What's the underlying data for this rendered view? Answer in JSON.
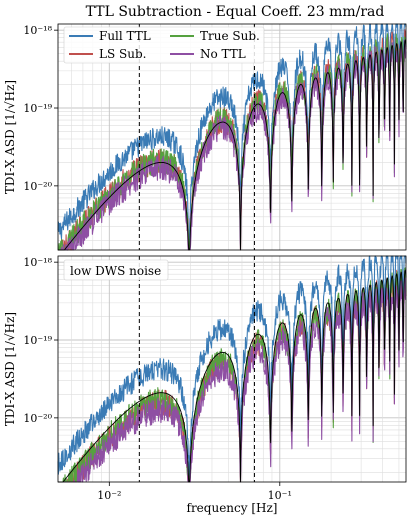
{
  "chart_data": [
    {
      "type": "line",
      "title": "TTL Subtraction - Equal Coeff. 23 mm/rad",
      "ylabel": "TDI-X ASD [1/√Hz]",
      "xlabel": "",
      "x_scale": "log",
      "y_scale": "log",
      "xlim": [
        0.005,
        0.55
      ],
      "ylim": [
        1.5e-21,
        1.2e-18
      ],
      "grid": true,
      "legend_location": "top-left",
      "y_ticks": [
        "10⁻²⁰",
        "10⁻¹⁹",
        "10⁻¹⁸"
      ],
      "vlines": [
        0.015,
        0.071
      ],
      "series": [
        {
          "name": "Full TTL",
          "color": "#3a7bb5",
          "peak_scale": 2.0
        },
        {
          "name": "LS Sub.",
          "color": "#c0504d",
          "peak_scale": 1.0
        },
        {
          "name": "True Sub.",
          "color": "#55a13f",
          "peak_scale": 1.0
        },
        {
          "name": "No TTL",
          "color": "#8e4fa3",
          "peak_scale": 0.8
        },
        {
          "name": "",
          "color": "#000000",
          "peak_scale": 0.95
        }
      ]
    },
    {
      "type": "line",
      "title": "",
      "annotation": "low DWS noise",
      "ylabel": "TDI-X ASD [1/√Hz]",
      "xlabel": "frequency [Hz]",
      "x_scale": "log",
      "y_scale": "log",
      "xlim": [
        0.005,
        0.55
      ],
      "ylim": [
        1.5e-21,
        1.2e-18
      ],
      "grid": true,
      "x_ticks": [
        "10⁻²",
        "10⁻¹"
      ],
      "y_ticks": [
        "10⁻²⁰",
        "10⁻¹⁹",
        "10⁻¹⁸"
      ],
      "vlines": [
        0.015,
        0.071
      ],
      "series": [
        {
          "name": "Full TTL",
          "color": "#3a7bb5",
          "peak_scale": 2.0
        },
        {
          "name": "LS Sub.",
          "color": "#c0504d",
          "peak_scale": 0.75
        },
        {
          "name": "True Sub.",
          "color": "#55a13f",
          "peak_scale": 0.8
        },
        {
          "name": "No TTL",
          "color": "#8e4fa3",
          "peak_scale": 0.6
        },
        {
          "name": "",
          "color": "#000000",
          "peak_scale": 1.0
        }
      ]
    }
  ]
}
